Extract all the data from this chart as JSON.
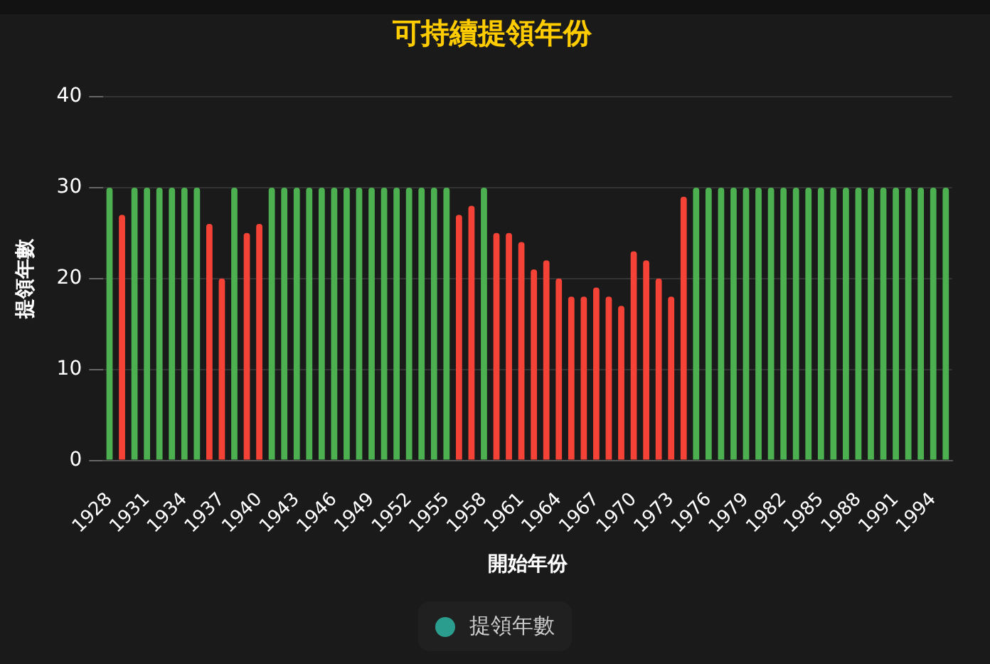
{
  "chart_data": {
    "type": "bar",
    "title": "可持續提領年份",
    "xlabel": "開始年份",
    "ylabel": "提領年數",
    "categories": [
      "1928",
      null,
      null,
      "1931",
      null,
      null,
      "1934",
      null,
      null,
      "1937",
      null,
      null,
      "1940",
      null,
      null,
      "1943",
      null,
      null,
      "1946",
      null,
      null,
      "1949",
      null,
      null,
      "1952",
      null,
      null,
      "1955",
      null,
      null,
      "1958",
      null,
      null,
      "1961",
      null,
      null,
      "1964",
      null,
      null,
      "1967",
      null,
      null,
      "1970",
      null,
      null,
      "1973",
      null,
      null,
      "1976",
      null,
      null,
      "1979",
      null,
      null,
      "1982",
      null,
      null,
      "1985",
      null,
      null,
      "1988",
      null,
      null,
      "1991",
      null,
      null,
      "1994",
      null
    ],
    "series": [
      {
        "name": "提領年數",
        "color": "#2a9d8f",
        "values": [
          30,
          27,
          30,
          30,
          30,
          30,
          30,
          30,
          26,
          20,
          30,
          25,
          26,
          30,
          30,
          30,
          30,
          30,
          30,
          30,
          30,
          30,
          30,
          30,
          30,
          30,
          30,
          30,
          27,
          28,
          30,
          25,
          25,
          24,
          21,
          22,
          20,
          18,
          18,
          19,
          18,
          17,
          23,
          22,
          20,
          18,
          29,
          30,
          30,
          30,
          30,
          30,
          30,
          30,
          30,
          30,
          30,
          30,
          30,
          30,
          30,
          30,
          30,
          30,
          30,
          30,
          30,
          30
        ],
        "colors": [
          "#4caf50",
          "#f44336",
          "#4caf50",
          "#4caf50",
          "#4caf50",
          "#4caf50",
          "#4caf50",
          "#4caf50",
          "#f44336",
          "#f44336",
          "#4caf50",
          "#f44336",
          "#f44336",
          "#4caf50",
          "#4caf50",
          "#4caf50",
          "#4caf50",
          "#4caf50",
          "#4caf50",
          "#4caf50",
          "#4caf50",
          "#4caf50",
          "#4caf50",
          "#4caf50",
          "#4caf50",
          "#4caf50",
          "#4caf50",
          "#4caf50",
          "#f44336",
          "#f44336",
          "#4caf50",
          "#f44336",
          "#f44336",
          "#f44336",
          "#f44336",
          "#f44336",
          "#f44336",
          "#f44336",
          "#f44336",
          "#f44336",
          "#f44336",
          "#f44336",
          "#f44336",
          "#f44336",
          "#f44336",
          "#f44336",
          "#f44336",
          "#4caf50",
          "#4caf50",
          "#4caf50",
          "#4caf50",
          "#4caf50",
          "#4caf50",
          "#4caf50",
          "#4caf50",
          "#4caf50",
          "#4caf50",
          "#4caf50",
          "#4caf50",
          "#4caf50",
          "#4caf50",
          "#4caf50",
          "#4caf50",
          "#4caf50",
          "#4caf50",
          "#4caf50",
          "#4caf50",
          "#4caf50"
        ]
      }
    ],
    "ylim": [
      0,
      40
    ],
    "yticks": [
      0,
      10,
      20,
      30,
      40
    ],
    "grid": "y",
    "legend": "bottom"
  }
}
